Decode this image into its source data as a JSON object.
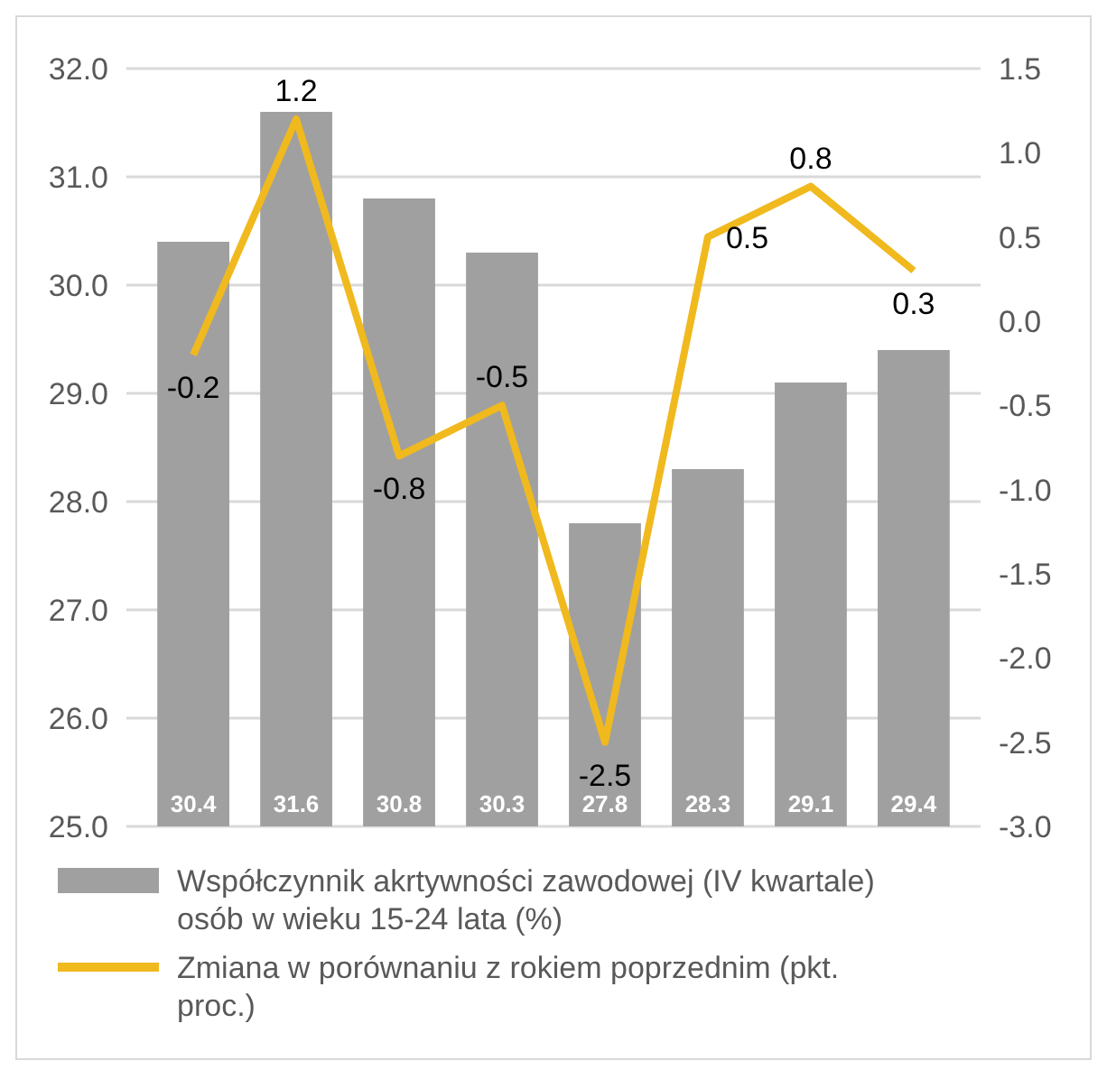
{
  "chart_data": {
    "type": "bar",
    "categories": [
      null,
      null,
      null,
      null,
      null,
      null,
      null,
      null
    ],
    "series": [
      {
        "name": "Współczynnik akrtywności zawodowej (IV kwartale) osób w wieku 15-24 lata (%)",
        "color": "#a0a0a0",
        "values": [
          30.4,
          31.6,
          30.8,
          30.3,
          27.8,
          28.3,
          29.1,
          29.4
        ]
      },
      {
        "name": "Zmiana w porównaniu z rokiem poprzednim (pkt. proc.)",
        "type": "line",
        "axis": "y2",
        "color": "#f0b91e",
        "values": [
          -0.2,
          1.2,
          -0.8,
          -0.5,
          -2.5,
          0.5,
          0.8,
          0.3
        ]
      }
    ],
    "ylim": [
      25,
      32
    ],
    "yticks": [
      {
        "value": 25,
        "label": "25.0"
      },
      {
        "value": 26,
        "label": "26.0"
      },
      {
        "value": 27,
        "label": "27.0"
      },
      {
        "value": 28,
        "label": "28.0"
      },
      {
        "value": 29,
        "label": "29.0"
      },
      {
        "value": 30,
        "label": "30.0"
      },
      {
        "value": 31,
        "label": "31.0"
      },
      {
        "value": 32,
        "label": "32.0"
      }
    ],
    "y2lim": [
      -3,
      1.5
    ],
    "y2ticks": [
      {
        "value": -3,
        "label": "-3.0"
      },
      {
        "value": -2.5,
        "label": "-2.5"
      },
      {
        "value": -2,
        "label": "-2.0"
      },
      {
        "value": -1.5,
        "label": "-1.5"
      },
      {
        "value": -1,
        "label": "-1.0"
      },
      {
        "value": -0.5,
        "label": "-0.5"
      },
      {
        "value": 0,
        "label": "0.0"
      },
      {
        "value": 0.5,
        "label": "0.5"
      },
      {
        "value": 1,
        "label": "1.0"
      },
      {
        "value": 1.5,
        "label": "1.5"
      }
    ],
    "grid": "y",
    "legend": "bottom",
    "data_labels": true,
    "marker": "none"
  }
}
